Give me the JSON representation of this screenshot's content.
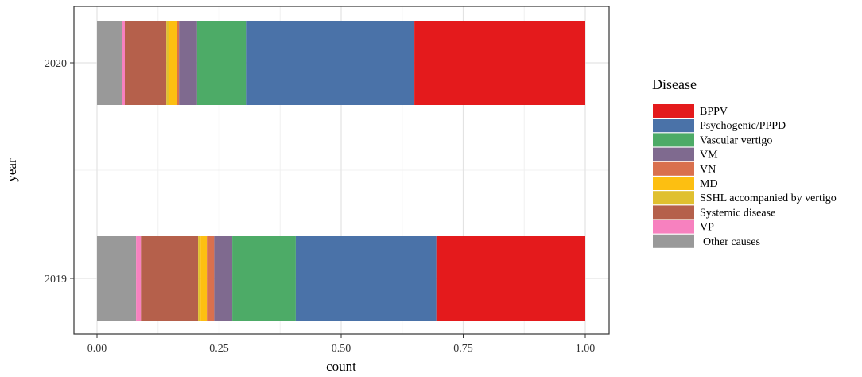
{
  "chart_data": {
    "type": "bar",
    "orientation": "horizontal",
    "stacked": true,
    "xlabel": "count",
    "ylabel": "year",
    "xlim": [
      0,
      1
    ],
    "x_ticks": [
      "0.00",
      "0.25",
      "0.50",
      "0.75",
      "1.00"
    ],
    "categories": [
      "2019",
      "2020"
    ],
    "grid": true,
    "legend_title": "Disease",
    "legend_position": "right",
    "series": [
      {
        "name": "Other causes",
        "color": "#999999",
        "values": [
          0.08,
          0.052
        ]
      },
      {
        "name": "VP",
        "color": "#F781BF",
        "values": [
          0.01,
          0.005
        ]
      },
      {
        "name": "Systemic disease",
        "color": "#B5604B",
        "values": [
          0.117,
          0.085
        ]
      },
      {
        "name": "SSHL accompanied by vertigo",
        "color": "#E0C02F",
        "values": [
          0.005,
          0.005
        ]
      },
      {
        "name": "MD",
        "color": "#FDBF11",
        "values": [
          0.013,
          0.016
        ]
      },
      {
        "name": "VN",
        "color": "#D9704E",
        "values": [
          0.015,
          0.005
        ]
      },
      {
        "name": "VM",
        "color": "#7F6A8F",
        "values": [
          0.037,
          0.037
        ]
      },
      {
        "name": "Vascular vertigo",
        "color": "#4DAB67",
        "values": [
          0.13,
          0.1
        ]
      },
      {
        "name": "Psychogenic/PPPD",
        "color": "#4A72A8",
        "values": [
          0.288,
          0.345
        ]
      },
      {
        "name": "BPPV",
        "color": "#E41A1C",
        "values": [
          0.305,
          0.35
        ]
      }
    ],
    "legend_order": [
      "BPPV",
      "Psychogenic/PPPD",
      "Vascular vertigo",
      "VM",
      "VN",
      "MD",
      "SSHL accompanied by vertigo",
      "Systemic disease",
      "VP",
      "Other causes"
    ]
  }
}
